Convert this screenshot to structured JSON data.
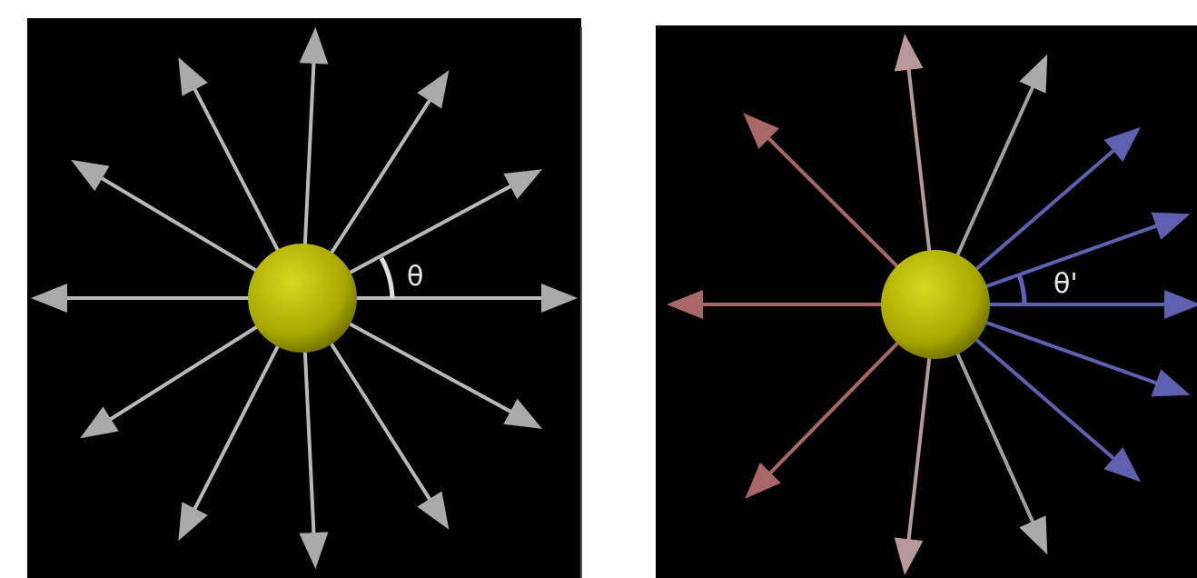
{
  "panels": [
    {
      "label": "θ"
    },
    {
      "label": "θ'"
    }
  ]
}
